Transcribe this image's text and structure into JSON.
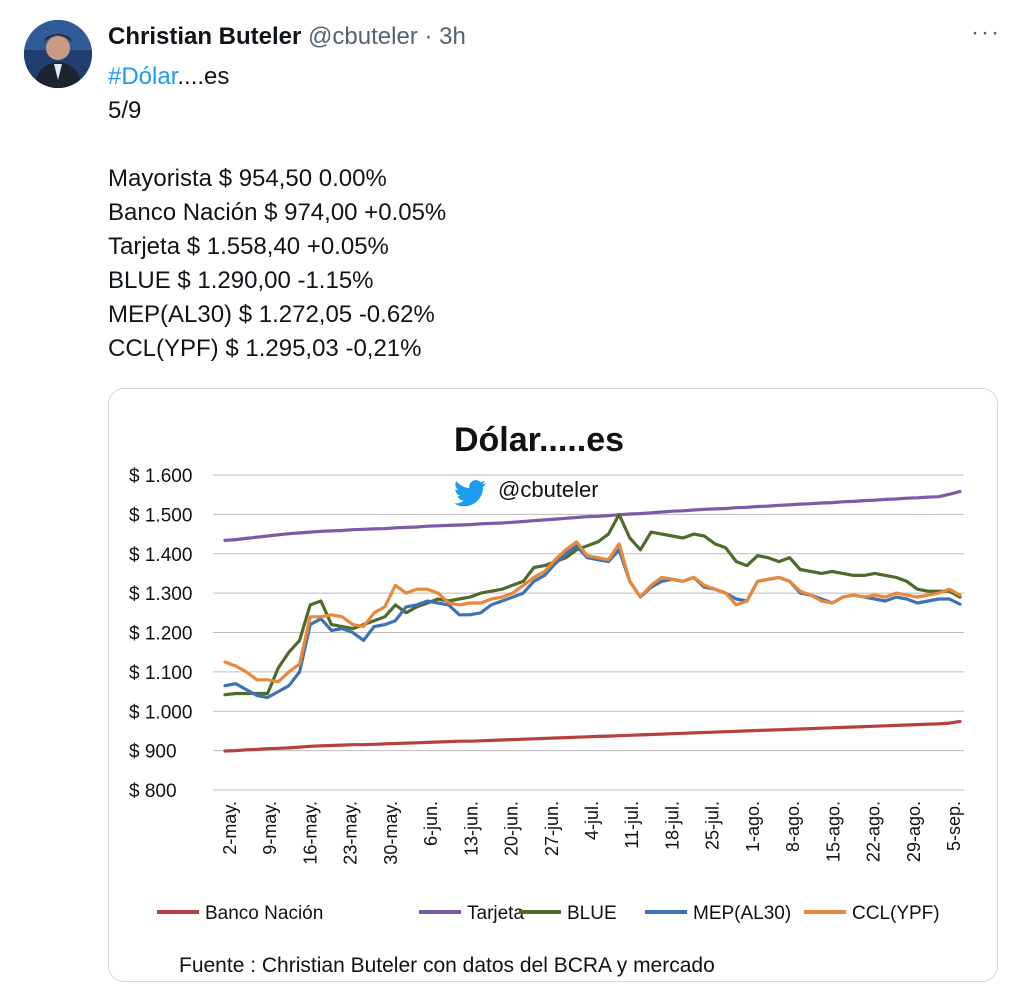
{
  "tweet": {
    "author_name": "Christian Buteler",
    "author_handle": "@cbuteler",
    "separator": "·",
    "time": "3h",
    "more_label": "···",
    "hashtag": "#Dólar",
    "hashtag_suffix": "....es",
    "date_line": "5/9",
    "lines": [
      "Mayorista $ 954,50 0.00%",
      "Banco Nación $ 974,00 +0.05%",
      "Tarjeta $ 1.558,40 +0.05%",
      "BLUE $ 1.290,00 -1.15%",
      "MEP(AL30) $ 1.272,05 -0.62%",
      "CCL(YPF) $ 1.295,03 -0,21%"
    ]
  },
  "chart_data": {
    "type": "line",
    "title": "Dólar.....es",
    "subtitle": "@cbuteler",
    "source_note": "Fuente : Christian Buteler con datos del BCRA y mercado",
    "ylim": [
      800,
      1600
    ],
    "y_ticks": [
      800,
      900,
      1000,
      1100,
      1200,
      1300,
      1400,
      1500,
      1600
    ],
    "y_tick_labels": [
      "$ 800",
      "$ 900",
      "$ 1.000",
      "$ 1.100",
      "$ 1.200",
      "$ 1.300",
      "$ 1.400",
      "$ 1.500",
      "$ 1.600"
    ],
    "x_tick_labels": [
      "2-may.",
      "9-may.",
      "16-may.",
      "23-may.",
      "30-may.",
      "6-jun.",
      "13-jun.",
      "20-jun.",
      "27-jun.",
      "4-jul.",
      "11-jul.",
      "18-jul.",
      "25-jul.",
      "1-ago.",
      "8-ago.",
      "15-ago.",
      "22-ago.",
      "29-ago.",
      "5-sep."
    ],
    "grid": true,
    "legend_position": "bottom",
    "colors": {
      "Banco Nación": "#b5413d",
      "Tarjeta": "#7b5ba6",
      "BLUE": "#4e6b2a",
      "MEP(AL30)": "#3e72b5",
      "CCL(YPF)": "#e8883a",
      "twitter_bird": "#1d9bf0",
      "hashtag": "#1d9bf0"
    },
    "x_dates": [
      "2-may.",
      "5-may.",
      "7-may.",
      "9-may.",
      "12-may.",
      "15-may.",
      "17-may.",
      "19-may.",
      "22-may.",
      "23-may.",
      "25-may.",
      "26-may.",
      "29-may.",
      "30-may.",
      "1-jun.",
      "2-jun.",
      "5-jun.",
      "6-jun.",
      "8-jun.",
      "9-jun.",
      "12-jun.",
      "13-jun.",
      "15-jun.",
      "16-jun.",
      "19-jun.",
      "20-jun.",
      "22-jun.",
      "23-jun.",
      "26-jun.",
      "27-jun.",
      "29-jun.",
      "30-jun.",
      "3-jul.",
      "4-jul.",
      "6-jul.",
      "7-jul.",
      "10-jul.",
      "11-jul.",
      "13-jul.",
      "14-jul.",
      "17-jul.",
      "18-jul.",
      "20-jul.",
      "21-jul.",
      "24-jul.",
      "25-jul.",
      "27-jul.",
      "28-jul.",
      "31-jul.",
      "1-ago.",
      "3-ago.",
      "4-ago.",
      "7-ago.",
      "8-ago.",
      "10-ago.",
      "11-ago.",
      "14-ago.",
      "15-ago.",
      "17-ago.",
      "18-ago.",
      "21-ago.",
      "22-ago.",
      "24-ago.",
      "25-ago.",
      "28-ago.",
      "29-ago.",
      "31-ago.",
      "1-sep.",
      "4-sep.",
      "5-sep."
    ],
    "series": [
      {
        "name": "Banco Nación",
        "values": [
          899,
          900,
          902,
          903,
          905,
          906,
          907,
          909,
          911,
          912,
          913,
          914,
          915,
          915,
          916,
          917,
          918,
          919,
          920,
          921,
          922,
          923,
          924,
          924,
          925,
          926,
          927,
          928,
          929,
          930,
          931,
          932,
          933,
          934,
          935,
          936,
          937,
          938,
          939,
          940,
          941,
          942,
          943,
          944,
          945,
          946,
          947,
          948,
          949,
          950,
          951,
          952,
          953,
          954,
          955,
          956,
          957,
          958,
          959,
          960,
          961,
          962,
          963,
          964,
          965,
          966,
          967,
          968,
          970,
          974
        ]
      },
      {
        "name": "Tarjeta",
        "values": [
          1434,
          1436,
          1439,
          1442,
          1445,
          1448,
          1451,
          1453,
          1455,
          1457,
          1458,
          1459,
          1461,
          1462,
          1463,
          1464,
          1466,
          1467,
          1468,
          1470,
          1471,
          1472,
          1473,
          1474,
          1476,
          1477,
          1478,
          1480,
          1482,
          1484,
          1486,
          1488,
          1490,
          1492,
          1494,
          1495,
          1497,
          1499,
          1501,
          1502,
          1504,
          1506,
          1508,
          1509,
          1511,
          1513,
          1514,
          1515,
          1517,
          1518,
          1520,
          1521,
          1523,
          1524,
          1526,
          1527,
          1529,
          1530,
          1532,
          1533,
          1535,
          1536,
          1538,
          1539,
          1541,
          1542,
          1544,
          1545,
          1551,
          1558
        ]
      },
      {
        "name": "BLUE",
        "values": [
          1042,
          1045,
          1045,
          1045,
          1045,
          1110,
          1150,
          1180,
          1270,
          1280,
          1220,
          1215,
          1210,
          1220,
          1230,
          1240,
          1270,
          1250,
          1265,
          1275,
          1285,
          1280,
          1285,
          1290,
          1300,
          1305,
          1310,
          1320,
          1330,
          1365,
          1370,
          1380,
          1390,
          1410,
          1420,
          1430,
          1450,
          1500,
          1440,
          1410,
          1455,
          1450,
          1445,
          1440,
          1450,
          1445,
          1425,
          1415,
          1380,
          1370,
          1395,
          1390,
          1380,
          1390,
          1360,
          1355,
          1350,
          1355,
          1350,
          1345,
          1345,
          1350,
          1345,
          1340,
          1330,
          1310,
          1305,
          1305,
          1305,
          1290
        ]
      },
      {
        "name": "MEP(AL30)",
        "values": [
          1065,
          1070,
          1055,
          1040,
          1035,
          1050,
          1065,
          1100,
          1220,
          1235,
          1205,
          1210,
          1200,
          1180,
          1215,
          1220,
          1230,
          1265,
          1270,
          1280,
          1275,
          1270,
          1245,
          1245,
          1250,
          1270,
          1280,
          1290,
          1300,
          1330,
          1345,
          1375,
          1400,
          1420,
          1390,
          1385,
          1380,
          1410,
          1330,
          1290,
          1315,
          1330,
          1335,
          1330,
          1340,
          1315,
          1310,
          1300,
          1285,
          1280,
          1330,
          1335,
          1340,
          1330,
          1300,
          1295,
          1285,
          1275,
          1290,
          1295,
          1290,
          1285,
          1280,
          1290,
          1285,
          1275,
          1280,
          1285,
          1285,
          1272
        ]
      },
      {
        "name": "CCL(YPF)",
        "values": [
          1125,
          1115,
          1100,
          1080,
          1080,
          1075,
          1100,
          1120,
          1240,
          1240,
          1245,
          1240,
          1220,
          1215,
          1250,
          1265,
          1320,
          1300,
          1310,
          1310,
          1300,
          1275,
          1270,
          1275,
          1275,
          1285,
          1290,
          1300,
          1320,
          1340,
          1355,
          1385,
          1410,
          1430,
          1395,
          1390,
          1385,
          1425,
          1330,
          1290,
          1320,
          1340,
          1335,
          1330,
          1340,
          1320,
          1310,
          1300,
          1270,
          1280,
          1330,
          1335,
          1340,
          1330,
          1305,
          1295,
          1280,
          1275,
          1290,
          1295,
          1290,
          1295,
          1290,
          1300,
          1295,
          1290,
          1295,
          1300,
          1310,
          1295
        ]
      }
    ]
  }
}
